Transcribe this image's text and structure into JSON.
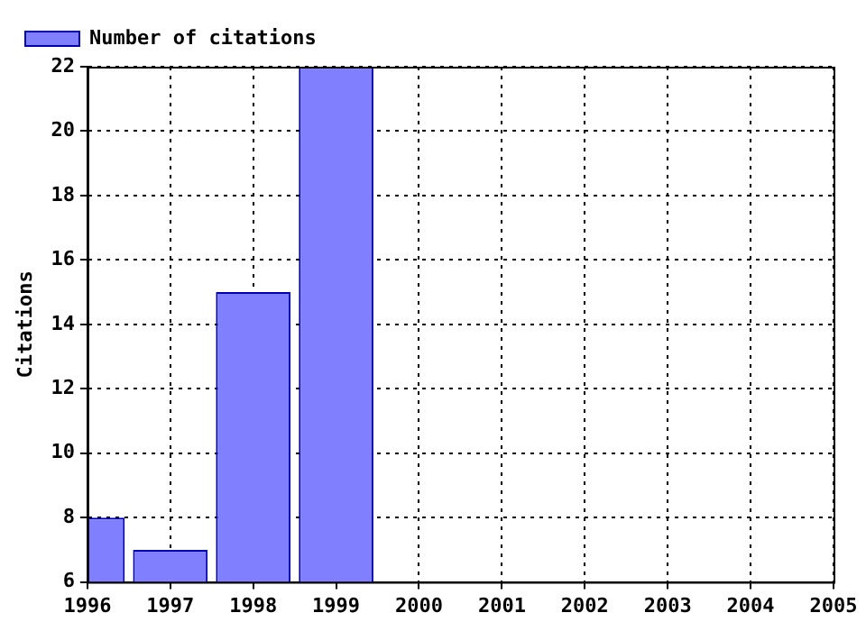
{
  "chart_data": {
    "type": "bar",
    "ylabel": "Citations",
    "x": [
      1996,
      1997,
      1998,
      1999
    ],
    "series": [
      {
        "name": "Number of citations",
        "color": "#8080ff",
        "values": [
          8,
          7,
          15,
          22
        ]
      }
    ],
    "xlim": [
      1996,
      2005
    ],
    "xticks": [
      1996,
      1997,
      1998,
      1999,
      2000,
      2001,
      2002,
      2003,
      2004,
      2005
    ],
    "ylim": [
      6,
      22
    ],
    "yticks": [
      6,
      8,
      10,
      12,
      14,
      16,
      18,
      20,
      22
    ],
    "grid": true,
    "line_style": "dotted",
    "legend": "top left"
  }
}
